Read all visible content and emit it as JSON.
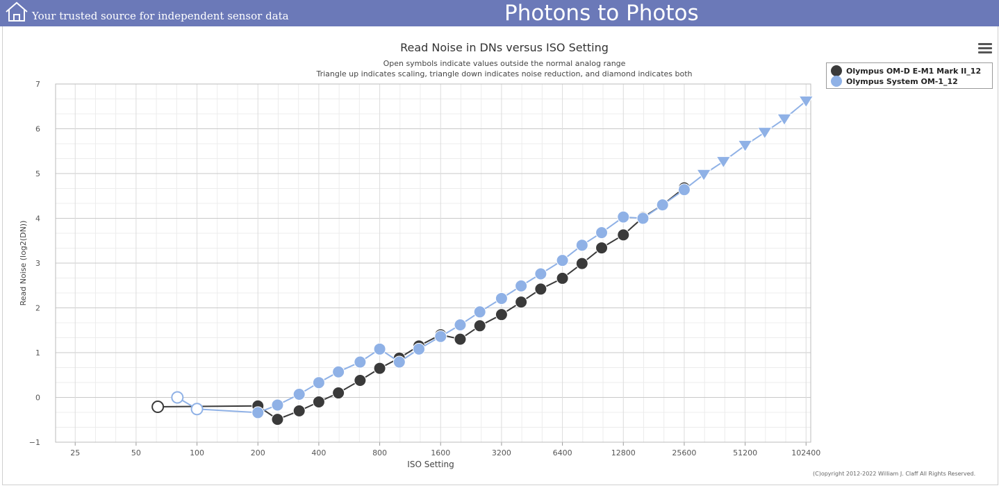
{
  "header": {
    "tagline": "Your trusted source for independent sensor data",
    "site_title": "Photons to Photos",
    "home_icon": "home-icon",
    "menu_icon": "hamburger-menu-icon"
  },
  "footer": {
    "copyright": "(C)opyright 2012-2022 William J. Claff All Rights Reserved."
  },
  "colors": {
    "banner": "#6b79b8",
    "series_dark": "#3a3a3a",
    "series_light": "#8fb1e6"
  },
  "chart_data": {
    "type": "line",
    "title": "Read Noise in DNs versus ISO Setting",
    "subtitle_line1": "Open symbols indicate values outside the normal analog range",
    "subtitle_line2": "Triangle up indicates scaling, triangle down indicates noise reduction, and diamond indicates both",
    "xlabel": "ISO Setting",
    "ylabel": "Read Noise (log2(DN))",
    "x_scale": "log2",
    "xlim": [
      20,
      108000
    ],
    "ylim": [
      -1,
      7
    ],
    "x_ticks": [
      25,
      50,
      100,
      200,
      400,
      800,
      1600,
      3200,
      6400,
      12800,
      25600,
      51200,
      102400
    ],
    "y_ticks": [
      -1,
      0,
      1,
      2,
      3,
      4,
      5,
      6,
      7
    ],
    "y_tick_labels": [
      "−1",
      "0",
      "1",
      "2",
      "3",
      "4",
      "5",
      "6",
      "7"
    ],
    "grid": true,
    "legend_position": "top-right",
    "series": [
      {
        "name": "Olympus OM-D E-M1 Mark II_12",
        "color": "#3a3a3a",
        "points": [
          {
            "x": 64,
            "y": -0.21,
            "marker": "open-circle"
          },
          {
            "x": 200,
            "y": -0.19,
            "marker": "circle"
          },
          {
            "x": 250,
            "y": -0.49,
            "marker": "circle"
          },
          {
            "x": 320,
            "y": -0.3,
            "marker": "circle"
          },
          {
            "x": 400,
            "y": -0.1,
            "marker": "circle"
          },
          {
            "x": 500,
            "y": 0.1,
            "marker": "circle"
          },
          {
            "x": 640,
            "y": 0.38,
            "marker": "circle"
          },
          {
            "x": 800,
            "y": 0.65,
            "marker": "circle"
          },
          {
            "x": 1000,
            "y": 0.88,
            "marker": "circle"
          },
          {
            "x": 1250,
            "y": 1.15,
            "marker": "circle"
          },
          {
            "x": 1600,
            "y": 1.4,
            "marker": "circle"
          },
          {
            "x": 2000,
            "y": 1.3,
            "marker": "circle"
          },
          {
            "x": 2500,
            "y": 1.6,
            "marker": "circle"
          },
          {
            "x": 3200,
            "y": 1.85,
            "marker": "circle"
          },
          {
            "x": 4000,
            "y": 2.13,
            "marker": "circle"
          },
          {
            "x": 5000,
            "y": 2.42,
            "marker": "circle"
          },
          {
            "x": 6400,
            "y": 2.66,
            "marker": "circle"
          },
          {
            "x": 8000,
            "y": 2.99,
            "marker": "circle"
          },
          {
            "x": 10000,
            "y": 3.34,
            "marker": "circle"
          },
          {
            "x": 12800,
            "y": 3.63,
            "marker": "circle"
          },
          {
            "x": 16000,
            "y": 4.02,
            "marker": "circle"
          },
          {
            "x": 20000,
            "y": 4.3,
            "marker": "circle"
          },
          {
            "x": 25600,
            "y": 4.68,
            "marker": "circle"
          }
        ]
      },
      {
        "name": "Olympus System OM-1_12",
        "color": "#8fb1e6",
        "points": [
          {
            "x": 80,
            "y": 0.0,
            "marker": "open-circle"
          },
          {
            "x": 100,
            "y": -0.26,
            "marker": "open-circle"
          },
          {
            "x": 200,
            "y": -0.34,
            "marker": "circle"
          },
          {
            "x": 250,
            "y": -0.17,
            "marker": "circle"
          },
          {
            "x": 320,
            "y": 0.07,
            "marker": "circle"
          },
          {
            "x": 400,
            "y": 0.33,
            "marker": "circle"
          },
          {
            "x": 500,
            "y": 0.57,
            "marker": "circle"
          },
          {
            "x": 640,
            "y": 0.79,
            "marker": "circle"
          },
          {
            "x": 800,
            "y": 1.08,
            "marker": "circle"
          },
          {
            "x": 1000,
            "y": 0.79,
            "marker": "circle"
          },
          {
            "x": 1250,
            "y": 1.08,
            "marker": "circle"
          },
          {
            "x": 1600,
            "y": 1.36,
            "marker": "circle"
          },
          {
            "x": 2000,
            "y": 1.62,
            "marker": "circle"
          },
          {
            "x": 2500,
            "y": 1.91,
            "marker": "circle"
          },
          {
            "x": 3200,
            "y": 2.21,
            "marker": "circle"
          },
          {
            "x": 4000,
            "y": 2.49,
            "marker": "circle"
          },
          {
            "x": 5000,
            "y": 2.76,
            "marker": "circle"
          },
          {
            "x": 6400,
            "y": 3.06,
            "marker": "circle"
          },
          {
            "x": 8000,
            "y": 3.4,
            "marker": "circle"
          },
          {
            "x": 10000,
            "y": 3.68,
            "marker": "circle"
          },
          {
            "x": 12800,
            "y": 4.03,
            "marker": "circle"
          },
          {
            "x": 16000,
            "y": 4.0,
            "marker": "circle"
          },
          {
            "x": 20000,
            "y": 4.3,
            "marker": "circle"
          },
          {
            "x": 25600,
            "y": 4.64,
            "marker": "circle"
          },
          {
            "x": 32000,
            "y": 4.98,
            "marker": "triangle-down"
          },
          {
            "x": 40000,
            "y": 5.27,
            "marker": "triangle-down"
          },
          {
            "x": 51200,
            "y": 5.63,
            "marker": "triangle-down"
          },
          {
            "x": 64000,
            "y": 5.92,
            "marker": "triangle-down"
          },
          {
            "x": 80000,
            "y": 6.22,
            "marker": "triangle-down"
          },
          {
            "x": 102400,
            "y": 6.62,
            "marker": "triangle-down"
          }
        ]
      }
    ]
  }
}
